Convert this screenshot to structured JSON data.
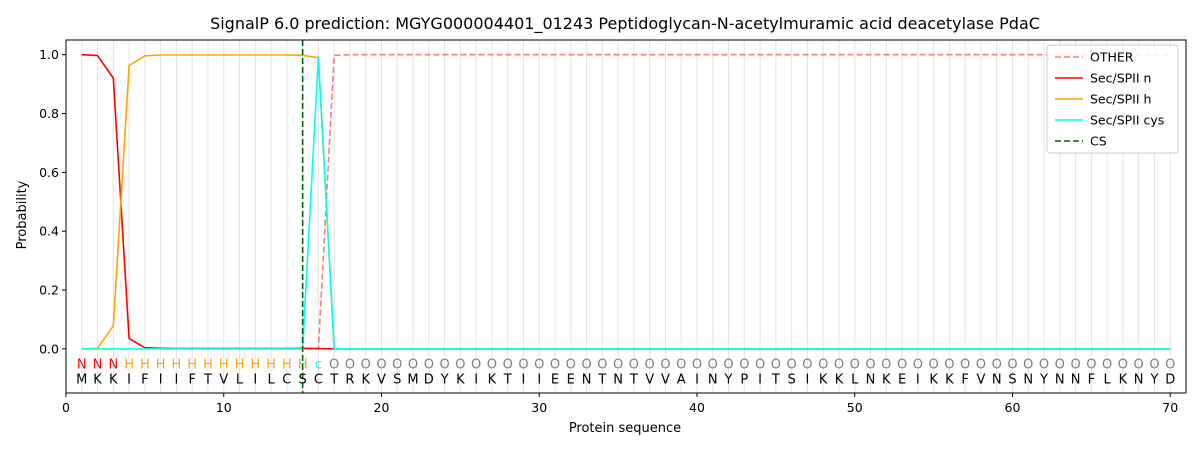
{
  "chart_data": {
    "type": "line",
    "title": "SignalP 6.0 prediction: MGYG000004401_01243 Peptidoglycan-N-acetylmuramic acid deacetylase PdaC",
    "xlabel": "Protein sequence",
    "ylabel": "Probability",
    "xlim": [
      0,
      71
    ],
    "ylim": [
      -0.15,
      1.05
    ],
    "xticks": [
      0,
      10,
      20,
      30,
      40,
      50,
      60,
      70
    ],
    "yticks": [
      0.0,
      0.2,
      0.4,
      0.6,
      0.8,
      1.0
    ],
    "x_tick_labels": [
      "0",
      "10",
      "20",
      "30",
      "40",
      "50",
      "60",
      "70"
    ],
    "y_tick_labels": [
      "0.0",
      "0.2",
      "0.4",
      "0.6",
      "0.8",
      "1.0"
    ],
    "vertical_grid_at_each_residue": true,
    "legend_position": "top-right",
    "sequence": "MKKIFIIFTVLILCSCTRKVSMDYKIKTIIEENTNTVVAINYPITSIKKLNKEIKKFVNSNYNNFLKNYD",
    "labels": "NNNHHHHHHHHHHHHcOOOOOOOOOOOOOOOOOOOOOOOOOOOOOOOOOOOOOOOOOOOOOOOOOOOOOO",
    "label_colors": {
      "N": "#ff0000",
      "H": "#ffa500",
      "c": "#00ffff",
      "O": "#808080"
    },
    "cleavage_site": 15,
    "series": [
      {
        "name": "OTHER",
        "color": "#f08080",
        "dash": true,
        "values": [
          0,
          0,
          0,
          0,
          0,
          0,
          0,
          0,
          0,
          0,
          0,
          0,
          0,
          0,
          0,
          0,
          0.998,
          1,
          1,
          1,
          1,
          1,
          1,
          1,
          1,
          1,
          1,
          1,
          1,
          1,
          1,
          1,
          1,
          1,
          1,
          1,
          1,
          1,
          1,
          1,
          1,
          1,
          1,
          1,
          1,
          1,
          1,
          1,
          1,
          1,
          1,
          1,
          1,
          1,
          1,
          1,
          1,
          1,
          1,
          1,
          1,
          1,
          1,
          1,
          1,
          1,
          1,
          1,
          1,
          1
        ]
      },
      {
        "name": "Sec/SPII n",
        "color": "#ff0000",
        "dash": false,
        "values": [
          1.0,
          0.997,
          0.92,
          0.035,
          0.004,
          0.002,
          0.001,
          0.001,
          0.001,
          0.001,
          0.001,
          0.001,
          0.001,
          0.001,
          0.002,
          0.001,
          0,
          0,
          0,
          0,
          0,
          0,
          0,
          0,
          0,
          0,
          0,
          0,
          0,
          0,
          0,
          0,
          0,
          0,
          0,
          0,
          0,
          0,
          0,
          0,
          0,
          0,
          0,
          0,
          0,
          0,
          0,
          0,
          0,
          0,
          0,
          0,
          0,
          0,
          0,
          0,
          0,
          0,
          0,
          0,
          0,
          0,
          0,
          0,
          0,
          0,
          0,
          0,
          0,
          0
        ]
      },
      {
        "name": "Sec/SPII h",
        "color": "#ffa500",
        "dash": false,
        "values": [
          0,
          0.002,
          0.078,
          0.963,
          0.996,
          0.999,
          0.999,
          0.999,
          0.999,
          0.999,
          0.999,
          0.999,
          0.999,
          0.999,
          0.998,
          0.99,
          0,
          0,
          0,
          0,
          0,
          0,
          0,
          0,
          0,
          0,
          0,
          0,
          0,
          0,
          0,
          0,
          0,
          0,
          0,
          0,
          0,
          0,
          0,
          0,
          0,
          0,
          0,
          0,
          0,
          0,
          0,
          0,
          0,
          0,
          0,
          0,
          0,
          0,
          0,
          0,
          0,
          0,
          0,
          0,
          0,
          0,
          0,
          0,
          0,
          0,
          0,
          0,
          0,
          0
        ]
      },
      {
        "name": "Sec/SPII cys",
        "color": "#00ffff",
        "dash": false,
        "values": [
          0,
          0,
          0,
          0,
          0,
          0,
          0,
          0,
          0,
          0,
          0,
          0,
          0,
          0,
          0,
          0.993,
          0.002,
          0,
          0,
          0,
          0,
          0,
          0,
          0,
          0,
          0,
          0,
          0,
          0,
          0,
          0,
          0,
          0,
          0,
          0,
          0,
          0,
          0,
          0,
          0,
          0,
          0,
          0,
          0,
          0,
          0,
          0,
          0,
          0,
          0,
          0,
          0,
          0,
          0,
          0,
          0,
          0,
          0,
          0,
          0,
          0,
          0,
          0,
          0,
          0,
          0,
          0,
          0,
          0,
          0
        ]
      },
      {
        "name": "CS",
        "color": "#006400",
        "dash": true,
        "vertical_at": 15
      }
    ]
  }
}
